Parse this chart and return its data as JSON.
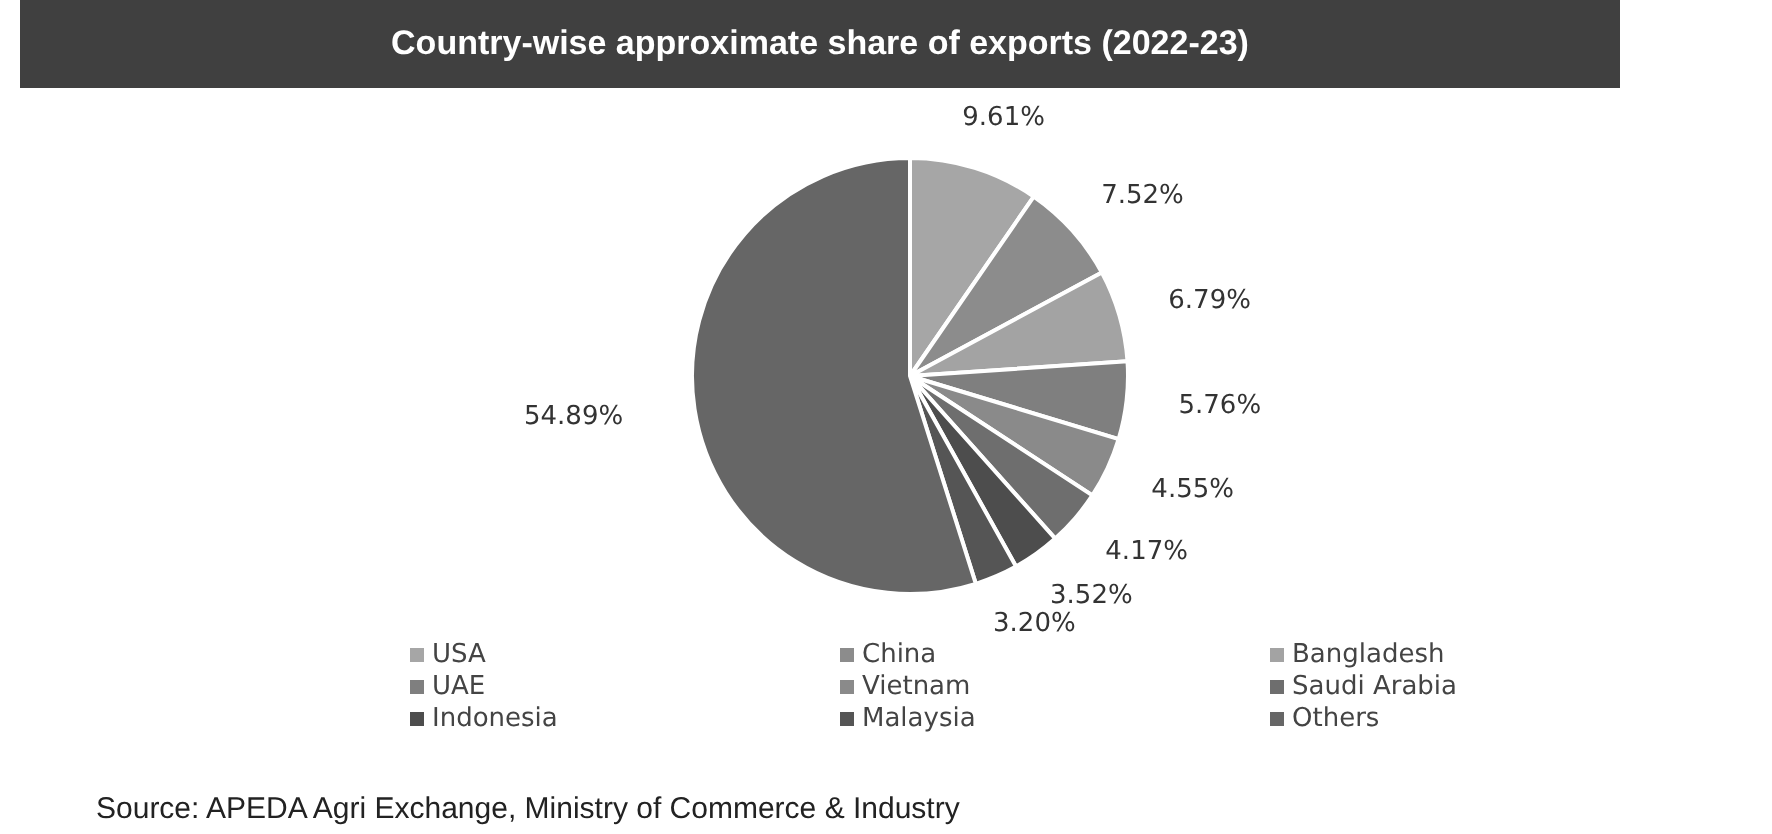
{
  "chart_data": {
    "type": "pie",
    "title": "Country-wise approximate share of exports (2022-23)",
    "categories": [
      "USA",
      "China",
      "Bangladesh",
      "UAE",
      "Vietnam",
      "Saudi Arabia",
      "Indonesia",
      "Malaysia",
      "Others"
    ],
    "values": [
      9.61,
      7.52,
      6.79,
      5.76,
      4.55,
      4.17,
      3.52,
      3.2,
      54.89
    ],
    "colors": [
      "#a6a6a6",
      "#8c8c8c",
      "#a3a3a3",
      "#7f7f7f",
      "#8a8a8a",
      "#6e6e6e",
      "#4d4d4d",
      "#555555",
      "#666666"
    ],
    "value_labels": [
      "9.61%",
      "7.52%",
      "6.79%",
      "5.76%",
      "4.55%",
      "4.17%",
      "3.52%",
      "3.20%",
      "54.89%"
    ],
    "legend": "bottom",
    "annotations": [
      "Source: APEDA Agri Exchange, Ministry of Commerce & Industry"
    ]
  }
}
